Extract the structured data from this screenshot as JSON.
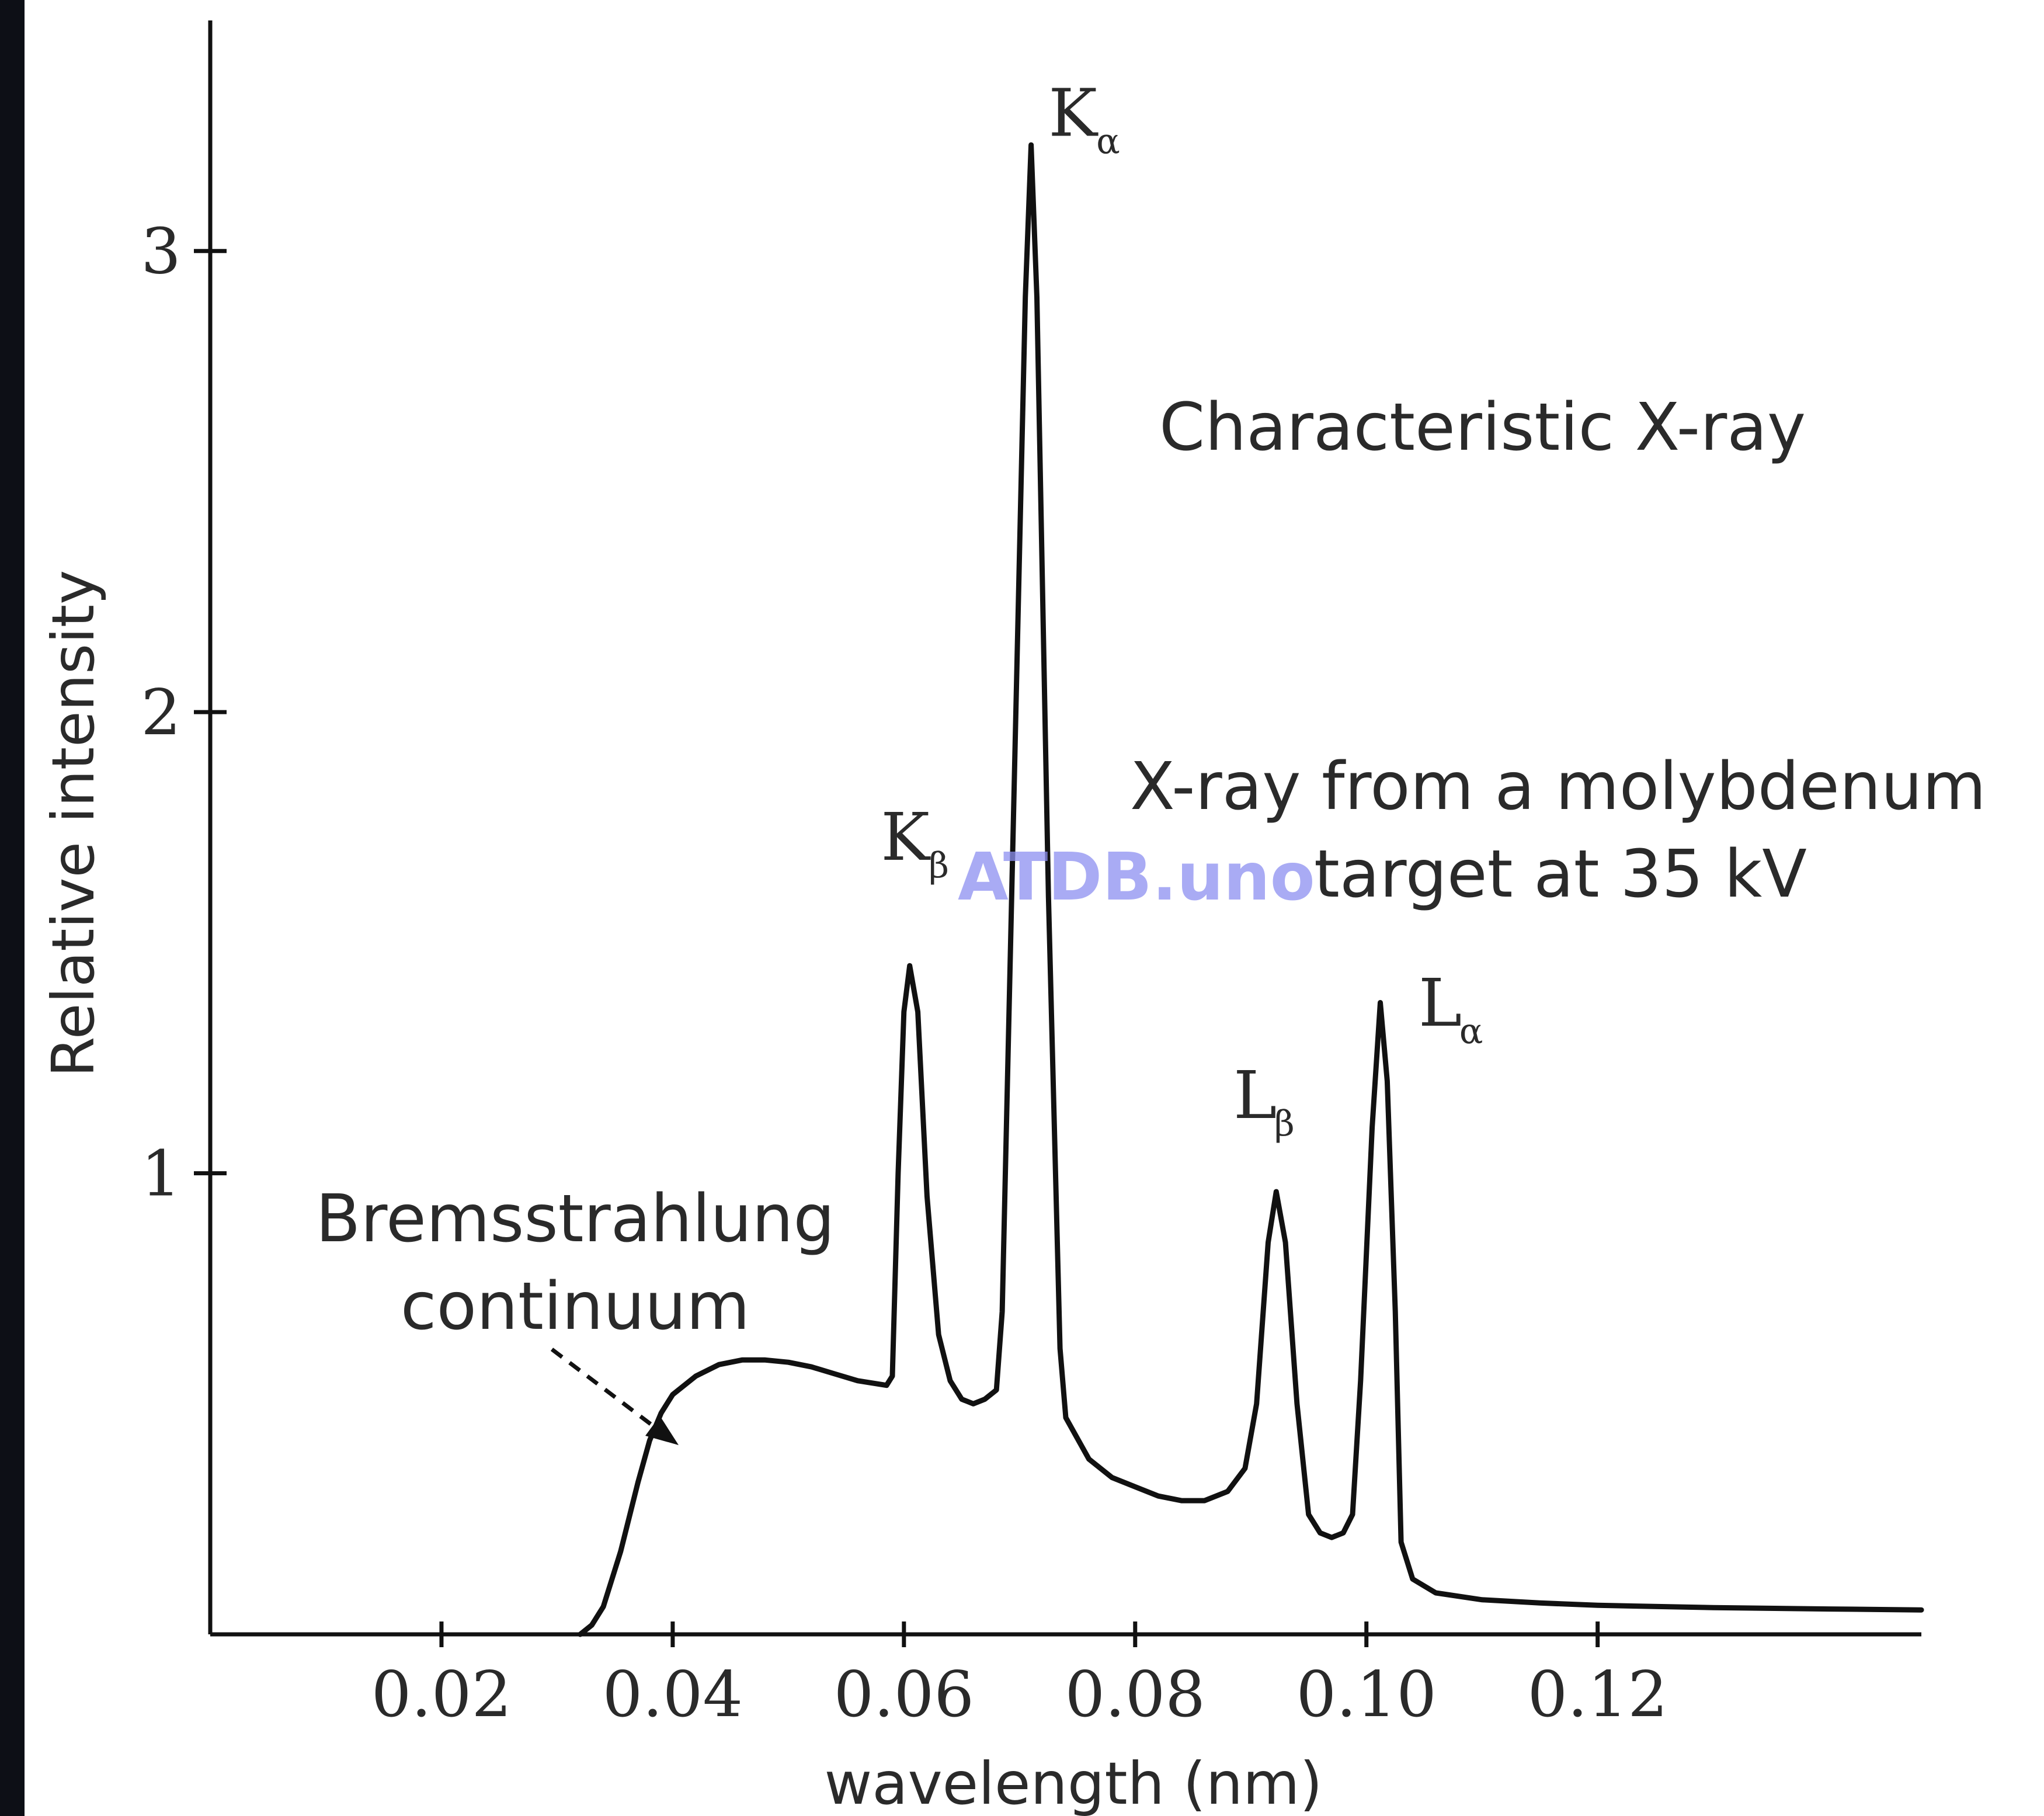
{
  "colors": {
    "background": "#ffffff",
    "left_border": "#0d0f16",
    "ink": "#111111",
    "text": "#2a2a2a",
    "watermark": "#8c8ff0"
  },
  "watermark": "ATDB.uno",
  "chart_data": {
    "type": "line",
    "title": "",
    "xlabel": "wavelength (nm)",
    "ylabel": "Relative intensity",
    "xlim": [
      0.0,
      0.148
    ],
    "ylim": [
      0.0,
      3.5
    ],
    "grid": false,
    "x_ticks": [
      0.02,
      0.04,
      0.06,
      0.08,
      0.1,
      0.12
    ],
    "x_tick_labels": [
      "0.02",
      "0.04",
      "0.06",
      "0.08",
      "0.10",
      "0.12"
    ],
    "y_ticks": [
      1,
      2,
      3
    ],
    "y_tick_labels": [
      "1",
      "2",
      "3"
    ],
    "series": [
      {
        "points": [
          [
            0.032,
            0.0
          ],
          [
            0.033,
            0.02
          ],
          [
            0.034,
            0.06
          ],
          [
            0.0355,
            0.18
          ],
          [
            0.037,
            0.33
          ],
          [
            0.038,
            0.42
          ],
          [
            0.039,
            0.48
          ],
          [
            0.04,
            0.52
          ],
          [
            0.042,
            0.56
          ],
          [
            0.044,
            0.585
          ],
          [
            0.046,
            0.595
          ],
          [
            0.048,
            0.595
          ],
          [
            0.05,
            0.59
          ],
          [
            0.052,
            0.58
          ],
          [
            0.054,
            0.565
          ],
          [
            0.056,
            0.55
          ],
          [
            0.0585,
            0.54
          ],
          [
            0.059,
            0.56
          ],
          [
            0.0595,
            1.0
          ],
          [
            0.06,
            1.35
          ],
          [
            0.0605,
            1.45
          ],
          [
            0.0612,
            1.35
          ],
          [
            0.062,
            0.95
          ],
          [
            0.063,
            0.65
          ],
          [
            0.064,
            0.55
          ],
          [
            0.065,
            0.51
          ],
          [
            0.066,
            0.5
          ],
          [
            0.067,
            0.51
          ],
          [
            0.068,
            0.53
          ],
          [
            0.0685,
            0.7
          ],
          [
            0.0695,
            1.8
          ],
          [
            0.0705,
            2.9
          ],
          [
            0.071,
            3.23
          ],
          [
            0.0715,
            2.9
          ],
          [
            0.0725,
            1.6
          ],
          [
            0.0735,
            0.62
          ],
          [
            0.074,
            0.47
          ],
          [
            0.076,
            0.38
          ],
          [
            0.078,
            0.34
          ],
          [
            0.08,
            0.32
          ],
          [
            0.082,
            0.3
          ],
          [
            0.084,
            0.29
          ],
          [
            0.086,
            0.29
          ],
          [
            0.088,
            0.31
          ],
          [
            0.0895,
            0.36
          ],
          [
            0.0905,
            0.5
          ],
          [
            0.0915,
            0.85
          ],
          [
            0.0922,
            0.96
          ],
          [
            0.093,
            0.85
          ],
          [
            0.094,
            0.5
          ],
          [
            0.095,
            0.26
          ],
          [
            0.096,
            0.22
          ],
          [
            0.097,
            0.21
          ],
          [
            0.098,
            0.22
          ],
          [
            0.0988,
            0.26
          ],
          [
            0.0995,
            0.55
          ],
          [
            0.1005,
            1.1
          ],
          [
            0.1012,
            1.37
          ],
          [
            0.1018,
            1.2
          ],
          [
            0.1025,
            0.7
          ],
          [
            0.103,
            0.2
          ],
          [
            0.104,
            0.12
          ],
          [
            0.106,
            0.09
          ],
          [
            0.11,
            0.075
          ],
          [
            0.115,
            0.068
          ],
          [
            0.12,
            0.063
          ],
          [
            0.13,
            0.058
          ],
          [
            0.14,
            0.055
          ],
          [
            0.148,
            0.053
          ]
        ]
      }
    ],
    "peak_labels": [
      {
        "main": "K",
        "sub": "α",
        "x": 0.0725,
        "y": 3.25
      },
      {
        "main": "K",
        "sub": "β",
        "x": 0.058,
        "y": 1.68
      },
      {
        "main": "L",
        "sub": "β",
        "x": 0.0885,
        "y": 1.12
      },
      {
        "main": "L",
        "sub": "α",
        "x": 0.1045,
        "y": 1.32
      }
    ],
    "annotations": {
      "characteristic": "Characteristic X-ray",
      "source_line1": "X-ray from a molybdenum",
      "source_line2": "target at 35 kV",
      "brems_line1": "Bremsstrahlung",
      "brems_line2": "continuum"
    }
  }
}
